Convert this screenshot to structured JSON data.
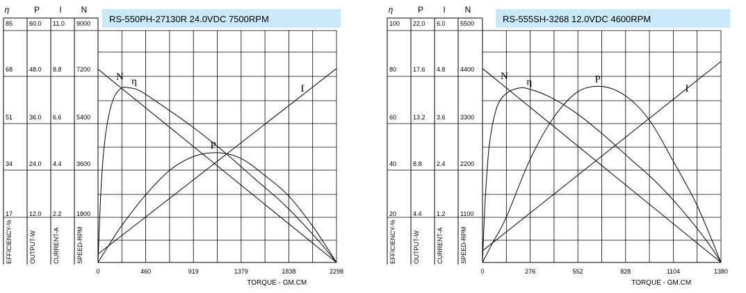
{
  "chart_data": [
    {
      "type": "line",
      "title": "RS-550PH-27130R    24.0VDC  7500RPM",
      "xlabel": "TORQUE - GM.CM",
      "x_ticks": [
        "0",
        "460",
        "919",
        "1379",
        "1838",
        "2298"
      ],
      "xlim": [
        0,
        2298
      ],
      "axes": [
        {
          "symbol": "η",
          "header": "η",
          "label": "EFFICIENCY-%",
          "ticks": [
            "17",
            "34",
            "51",
            "68",
            "85"
          ],
          "max": 85
        },
        {
          "symbol": "P",
          "header": "P",
          "label": "OUTPUT-W",
          "ticks": [
            "12.0",
            "24.0",
            "36.0",
            "48.0",
            "60.0"
          ],
          "max": 60
        },
        {
          "symbol": "I",
          "header": "I",
          "label": "CURRENT-A",
          "ticks": [
            "2.2",
            "4.4",
            "6.6",
            "8.8",
            "11.0"
          ],
          "max": 11
        },
        {
          "symbol": "N",
          "header": "N",
          "label": "SPEED-RPM",
          "ticks": [
            "1800",
            "3600",
            "5400",
            "7200",
            "9000"
          ],
          "max": 9000
        }
      ],
      "series": [
        {
          "name": "N",
          "axis": "N",
          "x": [
            0,
            2298
          ],
          "y": [
            7500,
            0
          ]
        },
        {
          "name": "I",
          "axis": "I",
          "x": [
            0,
            2298
          ],
          "y": [
            0.4,
            9.2
          ]
        },
        {
          "name": "P",
          "axis": "P",
          "x": [
            0,
            100,
            230,
            460,
            689,
            919,
            1149,
            1379,
            1608,
            1838,
            2068,
            2298
          ],
          "y": [
            0,
            4.3,
            9.6,
            17.5,
            23.8,
            27.4,
            28.4,
            26.9,
            22.5,
            17.2,
            9.4,
            0
          ]
        },
        {
          "name": "η",
          "axis": "η",
          "x": [
            0,
            20,
            40,
            70,
            110,
            160,
            230,
            300,
            400,
            600,
            900,
            1200,
            1500,
            1800,
            2100,
            2298
          ],
          "y": [
            0,
            20,
            34,
            46,
            55,
            61,
            64,
            64,
            63,
            58,
            50,
            41,
            31,
            21,
            9,
            0
          ]
        }
      ]
    },
    {
      "type": "line",
      "title": "RS-555SH-3268    12.0VDC   4600RPM",
      "xlabel": "TORQUE - GM.CM",
      "x_ticks": [
        "0",
        "276",
        "552",
        "828",
        "1104",
        "1380"
      ],
      "xlim": [
        0,
        1380
      ],
      "axes": [
        {
          "symbol": "η",
          "header": "η",
          "label": "EFFICIENCY-%",
          "ticks": [
            "20",
            "40",
            "60",
            "80",
            "100"
          ],
          "max": 100
        },
        {
          "symbol": "P",
          "header": "P",
          "label": "OUTPUT-W",
          "ticks": [
            "4.4",
            "8.8",
            "13.2",
            "17.6",
            "22.0"
          ],
          "max": 22
        },
        {
          "symbol": "I",
          "header": "I",
          "label": "CURRENT-A",
          "ticks": [
            "1.2",
            "2.4",
            "3.6",
            "4.8",
            "6.0"
          ],
          "max": 6
        },
        {
          "symbol": "N",
          "header": "N",
          "label": "SPEED-RPM",
          "ticks": [
            "1100",
            "2200",
            "3300",
            "4400",
            "5500"
          ],
          "max": 5500
        }
      ],
      "series": [
        {
          "name": "N",
          "axis": "N",
          "x": [
            0,
            1380
          ],
          "y": [
            4600,
            0
          ]
        },
        {
          "name": "I",
          "axis": "I",
          "x": [
            0,
            1380
          ],
          "y": [
            0.3,
            5.2
          ]
        },
        {
          "name": "P",
          "axis": "P",
          "x": [
            0,
            60,
            138,
            276,
            414,
            552,
            690,
            828,
            966,
            1104,
            1242,
            1380
          ],
          "y": [
            0,
            1.9,
            4.3,
            9.8,
            13.8,
            16.2,
            16.7,
            15.8,
            13.5,
            9.6,
            5.4,
            0
          ]
        },
        {
          "name": "η",
          "axis": "η",
          "x": [
            0,
            12,
            25,
            40,
            65,
            95,
            140,
            200,
            260,
            400,
            550,
            700,
            850,
            1000,
            1150,
            1300,
            1380
          ],
          "y": [
            0,
            22,
            38,
            51,
            62,
            69,
            73,
            75,
            75,
            71,
            64,
            55,
            45,
            35,
            23,
            9,
            0
          ]
        }
      ]
    }
  ]
}
